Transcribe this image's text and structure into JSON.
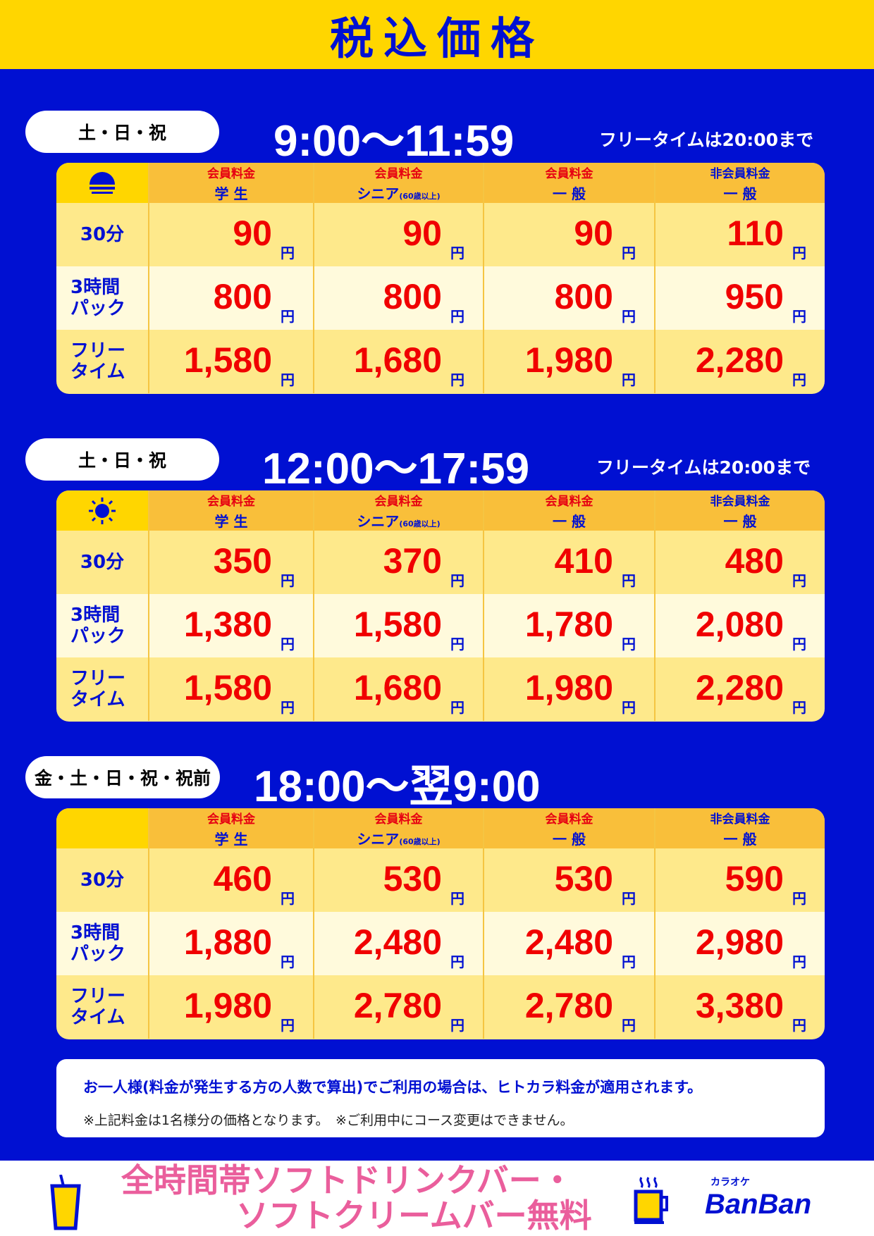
{
  "title": "税込価格",
  "headers": [
    {
      "top": "会員料金",
      "main": "学 生",
      "note": ""
    },
    {
      "top": "会員料金",
      "main": "シニア",
      "note": "(60歳以上)"
    },
    {
      "top": "会員料金",
      "main": "一 般",
      "note": ""
    },
    {
      "top": "非会員料金",
      "main": "一 般",
      "note": ""
    }
  ],
  "row_labels": [
    "30分",
    "3時間パック",
    "フリータイム"
  ],
  "yen": "円",
  "sections": [
    {
      "days": "土・日・祝",
      "time": "9:00〜11:59",
      "free_note": "フリータイムは20:00まで",
      "icon": "sunrise-icon",
      "rows": [
        [
          "90",
          "90",
          "90",
          "110"
        ],
        [
          "800",
          "800",
          "800",
          "950"
        ],
        [
          "1,580",
          "1,680",
          "1,980",
          "2,280"
        ]
      ]
    },
    {
      "days": "土・日・祝",
      "time": "12:00〜17:59",
      "free_note": "フリータイムは20:00まで",
      "icon": "sun-icon",
      "rows": [
        [
          "350",
          "370",
          "410",
          "480"
        ],
        [
          "1,380",
          "1,580",
          "1,780",
          "2,080"
        ],
        [
          "1,580",
          "1,680",
          "1,980",
          "2,280"
        ]
      ]
    },
    {
      "days": "金・土・日・祝・祝前",
      "time": "18:00〜翌9:00",
      "free_note": "",
      "icon": "moon-icon",
      "rows": [
        [
          "460",
          "530",
          "530",
          "590"
        ],
        [
          "1,880",
          "2,480",
          "2,480",
          "2,980"
        ],
        [
          "1,980",
          "2,780",
          "2,780",
          "3,380"
        ]
      ]
    }
  ],
  "notice": {
    "main": "お一人様(料金が発生する方の人数で算出)でご利用の場合は、ヒトカラ料金が適用されます。",
    "sub": "※上記料金は1名様分の価格となります。　※ご利用中にコース変更はできません。"
  },
  "footer": {
    "line1": "全時間帯ソフトドリンクバー・",
    "line2": "ソフトクリームバー無料",
    "logo_small": "カラオケ",
    "logo": "BanBan"
  },
  "colors": {
    "blue": "#0010d2",
    "yellow": "#ffd600",
    "price": "#f00000",
    "promo": "#ea5e9c"
  }
}
